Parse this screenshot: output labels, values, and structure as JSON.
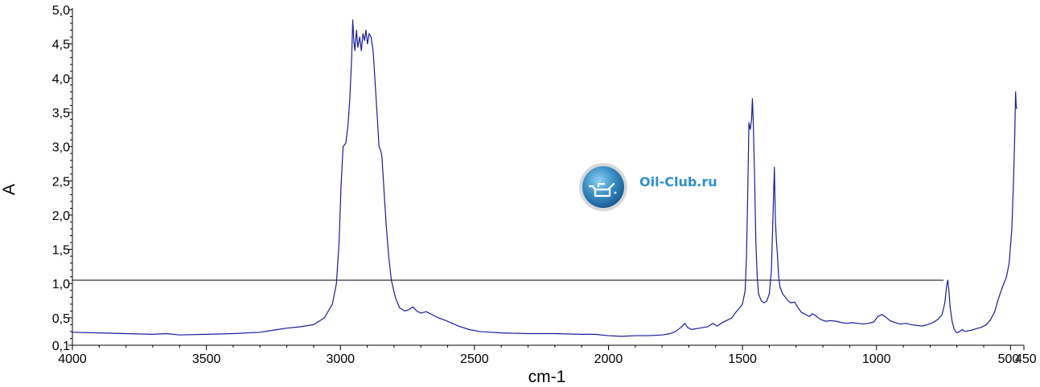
{
  "chart_data": {
    "type": "line",
    "title": "",
    "xlabel": "cm-1",
    "ylabel": "A",
    "x_reversed": true,
    "xlim": [
      4000,
      450
    ],
    "ylim": [
      0.1,
      5.0
    ],
    "grid": false,
    "x_ticks": [
      {
        "value": 4000,
        "label": "4000"
      },
      {
        "value": 3500,
        "label": "3500"
      },
      {
        "value": 3000,
        "label": "3000"
      },
      {
        "value": 2500,
        "label": "2500"
      },
      {
        "value": 2000,
        "label": "2000"
      },
      {
        "value": 1500,
        "label": "1500"
      },
      {
        "value": 1000,
        "label": "1000"
      },
      {
        "value": 500,
        "label": "500"
      },
      {
        "value": 450,
        "label": "450"
      }
    ],
    "y_ticks": [
      {
        "value": 0.1,
        "label": "0,1"
      },
      {
        "value": 0.5,
        "label": "0,5"
      },
      {
        "value": 1.0,
        "label": "1,0"
      },
      {
        "value": 1.5,
        "label": "1,5"
      },
      {
        "value": 2.0,
        "label": "2,0"
      },
      {
        "value": 2.5,
        "label": "2,5"
      },
      {
        "value": 3.0,
        "label": "3,0"
      },
      {
        "value": 3.5,
        "label": "3,5"
      },
      {
        "value": 4.0,
        "label": "4,0"
      },
      {
        "value": 4.5,
        "label": "4,5"
      },
      {
        "value": 5.0,
        "label": "5,0"
      }
    ],
    "reference_line": {
      "y": 1.05,
      "x_from": 4000,
      "x_to": 750,
      "color": "#000000"
    },
    "series": [
      {
        "color": "#1a1aa0",
        "points": [
          [
            4000,
            0.29
          ],
          [
            3900,
            0.28
          ],
          [
            3800,
            0.27
          ],
          [
            3700,
            0.26
          ],
          [
            3650,
            0.27
          ],
          [
            3600,
            0.25
          ],
          [
            3500,
            0.26
          ],
          [
            3400,
            0.27
          ],
          [
            3300,
            0.29
          ],
          [
            3250,
            0.32
          ],
          [
            3200,
            0.35
          ],
          [
            3150,
            0.37
          ],
          [
            3100,
            0.4
          ],
          [
            3060,
            0.5
          ],
          [
            3030,
            0.7
          ],
          [
            3015,
            1.0
          ],
          [
            3005,
            1.6
          ],
          [
            2998,
            2.4
          ],
          [
            2990,
            3.0
          ],
          [
            2980,
            3.05
          ],
          [
            2972,
            3.3
          ],
          [
            2965,
            3.7
          ],
          [
            2958,
            4.3
          ],
          [
            2954,
            4.85
          ],
          [
            2950,
            4.55
          ],
          [
            2946,
            4.4
          ],
          [
            2940,
            4.7
          ],
          [
            2935,
            4.45
          ],
          [
            2928,
            4.6
          ],
          [
            2922,
            4.4
          ],
          [
            2916,
            4.65
          ],
          [
            2910,
            4.55
          ],
          [
            2905,
            4.7
          ],
          [
            2899,
            4.5
          ],
          [
            2893,
            4.65
          ],
          [
            2886,
            4.6
          ],
          [
            2878,
            4.4
          ],
          [
            2870,
            3.9
          ],
          [
            2862,
            3.4
          ],
          [
            2856,
            3.0
          ],
          [
            2850,
            2.95
          ],
          [
            2845,
            2.85
          ],
          [
            2838,
            2.4
          ],
          [
            2830,
            1.9
          ],
          [
            2820,
            1.4
          ],
          [
            2810,
            1.05
          ],
          [
            2795,
            0.8
          ],
          [
            2780,
            0.65
          ],
          [
            2760,
            0.6
          ],
          [
            2745,
            0.62
          ],
          [
            2730,
            0.66
          ],
          [
            2715,
            0.6
          ],
          [
            2700,
            0.57
          ],
          [
            2680,
            0.59
          ],
          [
            2660,
            0.55
          ],
          [
            2640,
            0.51
          ],
          [
            2620,
            0.48
          ],
          [
            2600,
            0.45
          ],
          [
            2560,
            0.38
          ],
          [
            2520,
            0.33
          ],
          [
            2480,
            0.3
          ],
          [
            2440,
            0.29
          ],
          [
            2400,
            0.28
          ],
          [
            2300,
            0.27
          ],
          [
            2200,
            0.27
          ],
          [
            2100,
            0.26
          ],
          [
            2050,
            0.26
          ],
          [
            2000,
            0.24
          ],
          [
            1950,
            0.23
          ],
          [
            1900,
            0.24
          ],
          [
            1850,
            0.24
          ],
          [
            1800,
            0.25
          ],
          [
            1770,
            0.27
          ],
          [
            1750,
            0.3
          ],
          [
            1730,
            0.36
          ],
          [
            1715,
            0.42
          ],
          [
            1705,
            0.36
          ],
          [
            1690,
            0.33
          ],
          [
            1660,
            0.35
          ],
          [
            1630,
            0.37
          ],
          [
            1610,
            0.42
          ],
          [
            1595,
            0.38
          ],
          [
            1580,
            0.42
          ],
          [
            1560,
            0.46
          ],
          [
            1540,
            0.5
          ],
          [
            1525,
            0.58
          ],
          [
            1510,
            0.65
          ],
          [
            1500,
            0.7
          ],
          [
            1490,
            0.9
          ],
          [
            1485,
            1.4
          ],
          [
            1480,
            2.4
          ],
          [
            1476,
            3.35
          ],
          [
            1471,
            3.25
          ],
          [
            1466,
            3.4
          ],
          [
            1463,
            3.7
          ],
          [
            1460,
            3.4
          ],
          [
            1455,
            2.6
          ],
          [
            1450,
            1.6
          ],
          [
            1445,
            1.1
          ],
          [
            1440,
            0.85
          ],
          [
            1430,
            0.75
          ],
          [
            1420,
            0.72
          ],
          [
            1410,
            0.74
          ],
          [
            1400,
            0.85
          ],
          [
            1392,
            1.2
          ],
          [
            1386,
            2.0
          ],
          [
            1381,
            2.7
          ],
          [
            1377,
            1.9
          ],
          [
            1373,
            1.6
          ],
          [
            1370,
            1.45
          ],
          [
            1365,
            1.1
          ],
          [
            1360,
            0.95
          ],
          [
            1350,
            0.85
          ],
          [
            1340,
            0.8
          ],
          [
            1330,
            0.75
          ],
          [
            1320,
            0.72
          ],
          [
            1305,
            0.73
          ],
          [
            1295,
            0.66
          ],
          [
            1280,
            0.58
          ],
          [
            1265,
            0.55
          ],
          [
            1250,
            0.52
          ],
          [
            1240,
            0.56
          ],
          [
            1230,
            0.54
          ],
          [
            1210,
            0.48
          ],
          [
            1190,
            0.45
          ],
          [
            1170,
            0.46
          ],
          [
            1150,
            0.45
          ],
          [
            1130,
            0.43
          ],
          [
            1110,
            0.42
          ],
          [
            1090,
            0.43
          ],
          [
            1070,
            0.42
          ],
          [
            1050,
            0.41
          ],
          [
            1030,
            0.42
          ],
          [
            1010,
            0.44
          ],
          [
            995,
            0.52
          ],
          [
            980,
            0.55
          ],
          [
            965,
            0.51
          ],
          [
            950,
            0.46
          ],
          [
            930,
            0.43
          ],
          [
            910,
            0.41
          ],
          [
            890,
            0.42
          ],
          [
            870,
            0.4
          ],
          [
            850,
            0.39
          ],
          [
            830,
            0.38
          ],
          [
            810,
            0.4
          ],
          [
            790,
            0.43
          ],
          [
            770,
            0.48
          ],
          [
            755,
            0.55
          ],
          [
            745,
            0.72
          ],
          [
            738,
            0.98
          ],
          [
            734,
            1.05
          ],
          [
            730,
            0.9
          ],
          [
            725,
            0.65
          ],
          [
            718,
            0.45
          ],
          [
            710,
            0.33
          ],
          [
            700,
            0.28
          ],
          [
            690,
            0.3
          ],
          [
            680,
            0.33
          ],
          [
            670,
            0.3
          ],
          [
            660,
            0.31
          ],
          [
            645,
            0.32
          ],
          [
            630,
            0.34
          ],
          [
            610,
            0.36
          ],
          [
            590,
            0.4
          ],
          [
            575,
            0.47
          ],
          [
            560,
            0.58
          ],
          [
            545,
            0.78
          ],
          [
            530,
            0.95
          ],
          [
            515,
            1.1
          ],
          [
            505,
            1.3
          ],
          [
            495,
            1.8
          ],
          [
            488,
            2.6
          ],
          [
            484,
            3.2
          ],
          [
            481,
            3.8
          ],
          [
            479,
            3.6
          ],
          [
            477,
            3.55
          ]
        ]
      }
    ]
  },
  "watermark": {
    "text": "Oil-Club.ru",
    "logo": "oil-can-icon",
    "circle_color": "#3a8fc6"
  }
}
